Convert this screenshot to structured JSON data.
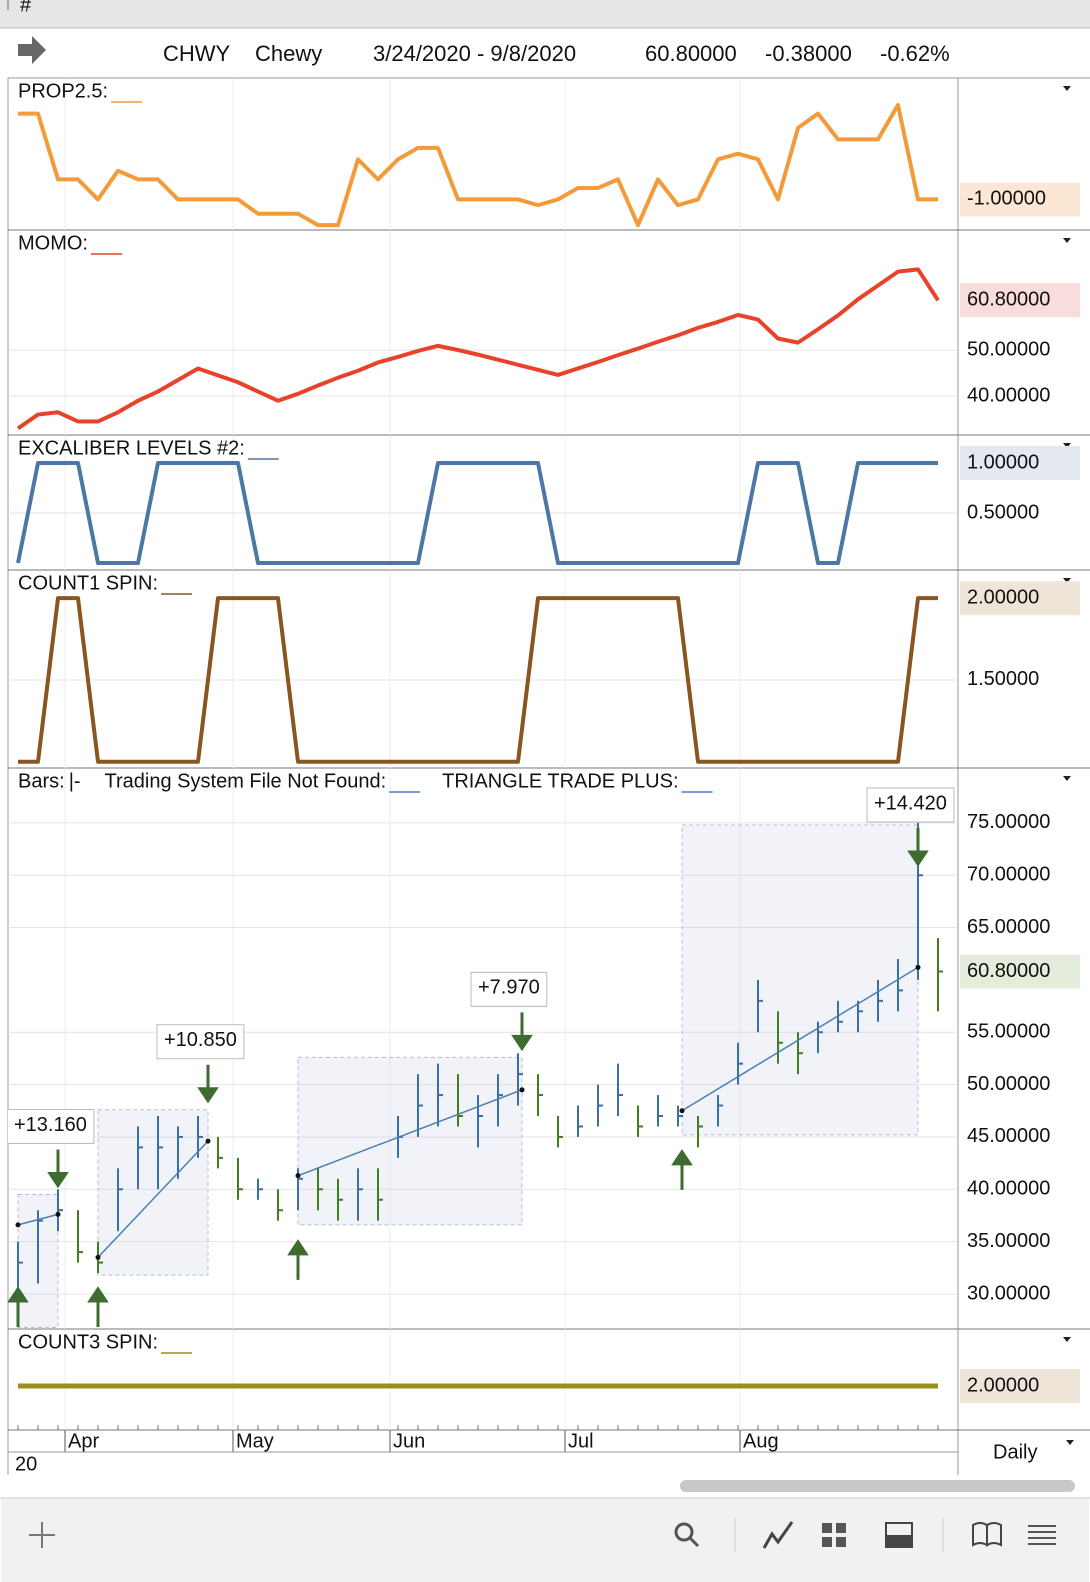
{
  "top_bar": {
    "label": "#"
  },
  "header": {
    "symbol": "CHWY",
    "name": "Chewy",
    "range": "3/24/2020 - 9/8/2020",
    "last": "60.80000",
    "change": "-0.38000",
    "percent": "-0.62%"
  },
  "panels": [
    {
      "type": "line",
      "labels": [
        "PROP2.5:"
      ],
      "color": "#f29b38",
      "ylim": [
        -2,
        3
      ],
      "yticks": [],
      "current": {
        "value": -1,
        "label": "-1.00000"
      },
      "values": [
        2,
        2,
        -0.3,
        -0.3,
        -1,
        0,
        -0.3,
        -0.3,
        -1,
        -1,
        -1,
        -1,
        -1.5,
        -1.5,
        -1.5,
        -1.9,
        -1.9,
        0.4,
        -0.3,
        0.4,
        0.8,
        0.8,
        -1,
        -1,
        -1,
        -1,
        -1.2,
        -1,
        -0.6,
        -0.6,
        -0.3,
        -1.9,
        -0.3,
        -1.2,
        -1,
        0.4,
        0.6,
        0.4,
        -1,
        1.5,
        2,
        1.1,
        1.1,
        1.1,
        2.3,
        -1,
        -1
      ]
    },
    {
      "type": "line",
      "labels": [
        "MOMO:"
      ],
      "color": "#e8432a",
      "ylim": [
        32,
        75.6
      ],
      "yticks": [
        {
          "value": 50,
          "label": "50.00000"
        },
        {
          "value": 40,
          "label": "40.00000"
        }
      ],
      "current": {
        "value": 60.8,
        "label": "60.80000"
      },
      "values": [
        33,
        36,
        36.5,
        34.5,
        34.5,
        36.5,
        39,
        41,
        43.5,
        46,
        44.5,
        43,
        41,
        39,
        40.5,
        42.3,
        44,
        45.5,
        47.3,
        48.5,
        49.8,
        50.9,
        50,
        49,
        47.9,
        46.8,
        45.7,
        44.6,
        46,
        47.4,
        48.9,
        50.3,
        51.8,
        53.2,
        54.8,
        56.1,
        57.6,
        56.6,
        52.5,
        51.6,
        54.5,
        57.5,
        61,
        64,
        67,
        67.5,
        60.8
      ]
    },
    {
      "type": "line",
      "labels": [
        "EXCALIBER LEVELS #2:"
      ],
      "color": "#4d77a6",
      "ylim": [
        -0.05,
        1.26
      ],
      "yticks": [
        {
          "value": 0.5,
          "label": "0.50000"
        }
      ],
      "current": {
        "value": 1,
        "label": "1.00000"
      },
      "values": [
        0,
        1,
        1,
        1,
        0,
        0,
        0,
        1,
        1,
        1,
        1,
        1,
        0,
        0,
        0,
        0,
        0,
        0,
        0,
        0,
        0,
        1,
        1,
        1,
        1,
        1,
        1,
        0,
        0,
        0,
        0,
        0,
        0,
        0,
        0,
        0,
        0,
        1,
        1,
        1,
        0,
        0,
        1,
        1,
        1,
        1,
        1
      ]
    },
    {
      "type": "line",
      "labels": [
        "COUNT1 SPIN:"
      ],
      "color": "#8a5520",
      "ylim": [
        0.98,
        2.16
      ],
      "yticks": [
        {
          "value": 1.5,
          "label": "1.50000"
        }
      ],
      "current": {
        "value": 2,
        "label": "2.00000"
      },
      "values": [
        1,
        1,
        2,
        2,
        1,
        1,
        1,
        1,
        1,
        1,
        2,
        2,
        2,
        2,
        1,
        1,
        1,
        1,
        1,
        1,
        1,
        1,
        1,
        1,
        1,
        1,
        2,
        2,
        2,
        2,
        2,
        2,
        2,
        2,
        1,
        1,
        1,
        1,
        1,
        1,
        1,
        1,
        1,
        1,
        1,
        2,
        2
      ]
    },
    {
      "type": "bars",
      "labels": [
        "Bars:",
        "|-",
        "Trading System File Not Found:",
        "TRIANGLE TRADE PLUS:"
      ],
      "up_color": "#3b6fa8",
      "down_color": "#3f7f22",
      "ylim": [
        26.75,
        80.05
      ],
      "yticks": [
        {
          "value": 30,
          "label": "30.00000"
        },
        {
          "value": 35,
          "label": "35.00000"
        },
        {
          "value": 40,
          "label": "40.00000"
        },
        {
          "value": 45,
          "label": "45.00000"
        },
        {
          "value": 50,
          "label": "50.00000"
        },
        {
          "value": 55,
          "label": "55.00000"
        },
        {
          "value": 65,
          "label": "65.00000"
        },
        {
          "value": 70,
          "label": "70.00000"
        },
        {
          "value": 75,
          "label": "75.00000"
        }
      ],
      "current": {
        "value": 60.8,
        "label": "60.80000"
      },
      "high": [
        35,
        38,
        40,
        38,
        35,
        42,
        46,
        47,
        46,
        47,
        45,
        43,
        41,
        40,
        42,
        42,
        41,
        42,
        42,
        47,
        51,
        52,
        51,
        49,
        51,
        53,
        51,
        47,
        48,
        50,
        52,
        48,
        49,
        48,
        47,
        49,
        54,
        60,
        57,
        55,
        56,
        58,
        58,
        60,
        62,
        75,
        64
      ],
      "low": [
        30,
        31,
        36,
        33,
        32,
        36,
        40,
        40,
        41,
        43,
        42,
        39,
        39,
        37,
        38,
        38,
        37,
        37,
        37,
        43,
        45,
        46,
        46,
        44,
        46,
        48,
        47,
        44,
        45,
        46,
        47,
        45,
        46,
        46,
        44,
        46,
        50,
        55,
        52,
        51,
        53,
        55,
        55,
        56,
        57,
        60,
        57
      ],
      "close": [
        33,
        37,
        38,
        34,
        33,
        40,
        44,
        44,
        45,
        45,
        43,
        40,
        40,
        38,
        41,
        40,
        39,
        40,
        39,
        45,
        48,
        49,
        47,
        47,
        49,
        51,
        49,
        45,
        46,
        48,
        49,
        46,
        47,
        47,
        46,
        48,
        52,
        58,
        54,
        53,
        55,
        56,
        57,
        58,
        59,
        70,
        60.8
      ],
      "trades": [
        {
          "label": "+13.160",
          "start": 0,
          "end": 2,
          "high": 39.5,
          "low": 26.8,
          "entry": 36.6,
          "exit": 37.6
        },
        {
          "label": "+10.850",
          "start": 4,
          "end": 9.5,
          "high": 47.6,
          "low": 31.8,
          "entry": 33.5,
          "exit": 44.6
        },
        {
          "label": "+7.970",
          "start": 14,
          "end": 25.2,
          "high": 52.6,
          "low": 36.6,
          "entry": 41.3,
          "exit": 49.5
        },
        {
          "label": "+14.420",
          "start": 33.2,
          "end": 45,
          "high": 74.8,
          "low": 45.2,
          "entry": 47.5,
          "exit": 61.2
        }
      ]
    },
    {
      "type": "line",
      "labels": [
        "COUNT3 SPIN:"
      ],
      "color": "#9a8f1e",
      "ylim": [
        1.4,
        2.8
      ],
      "yticks": [],
      "current": {
        "value": 2,
        "label": "2.00000"
      },
      "x": [
        0,
        46
      ],
      "values": [
        2,
        2
      ]
    }
  ],
  "xaxis": {
    "ticks": [
      {
        "value": 2.35,
        "label": "Apr"
      },
      {
        "value": 10.75,
        "label": "May"
      },
      {
        "value": 18.6,
        "label": "Jun"
      },
      {
        "value": 27.35,
        "label": "Jul"
      },
      {
        "value": 36.1,
        "label": "Aug"
      }
    ],
    "year": "20"
  },
  "period": "Daily"
}
